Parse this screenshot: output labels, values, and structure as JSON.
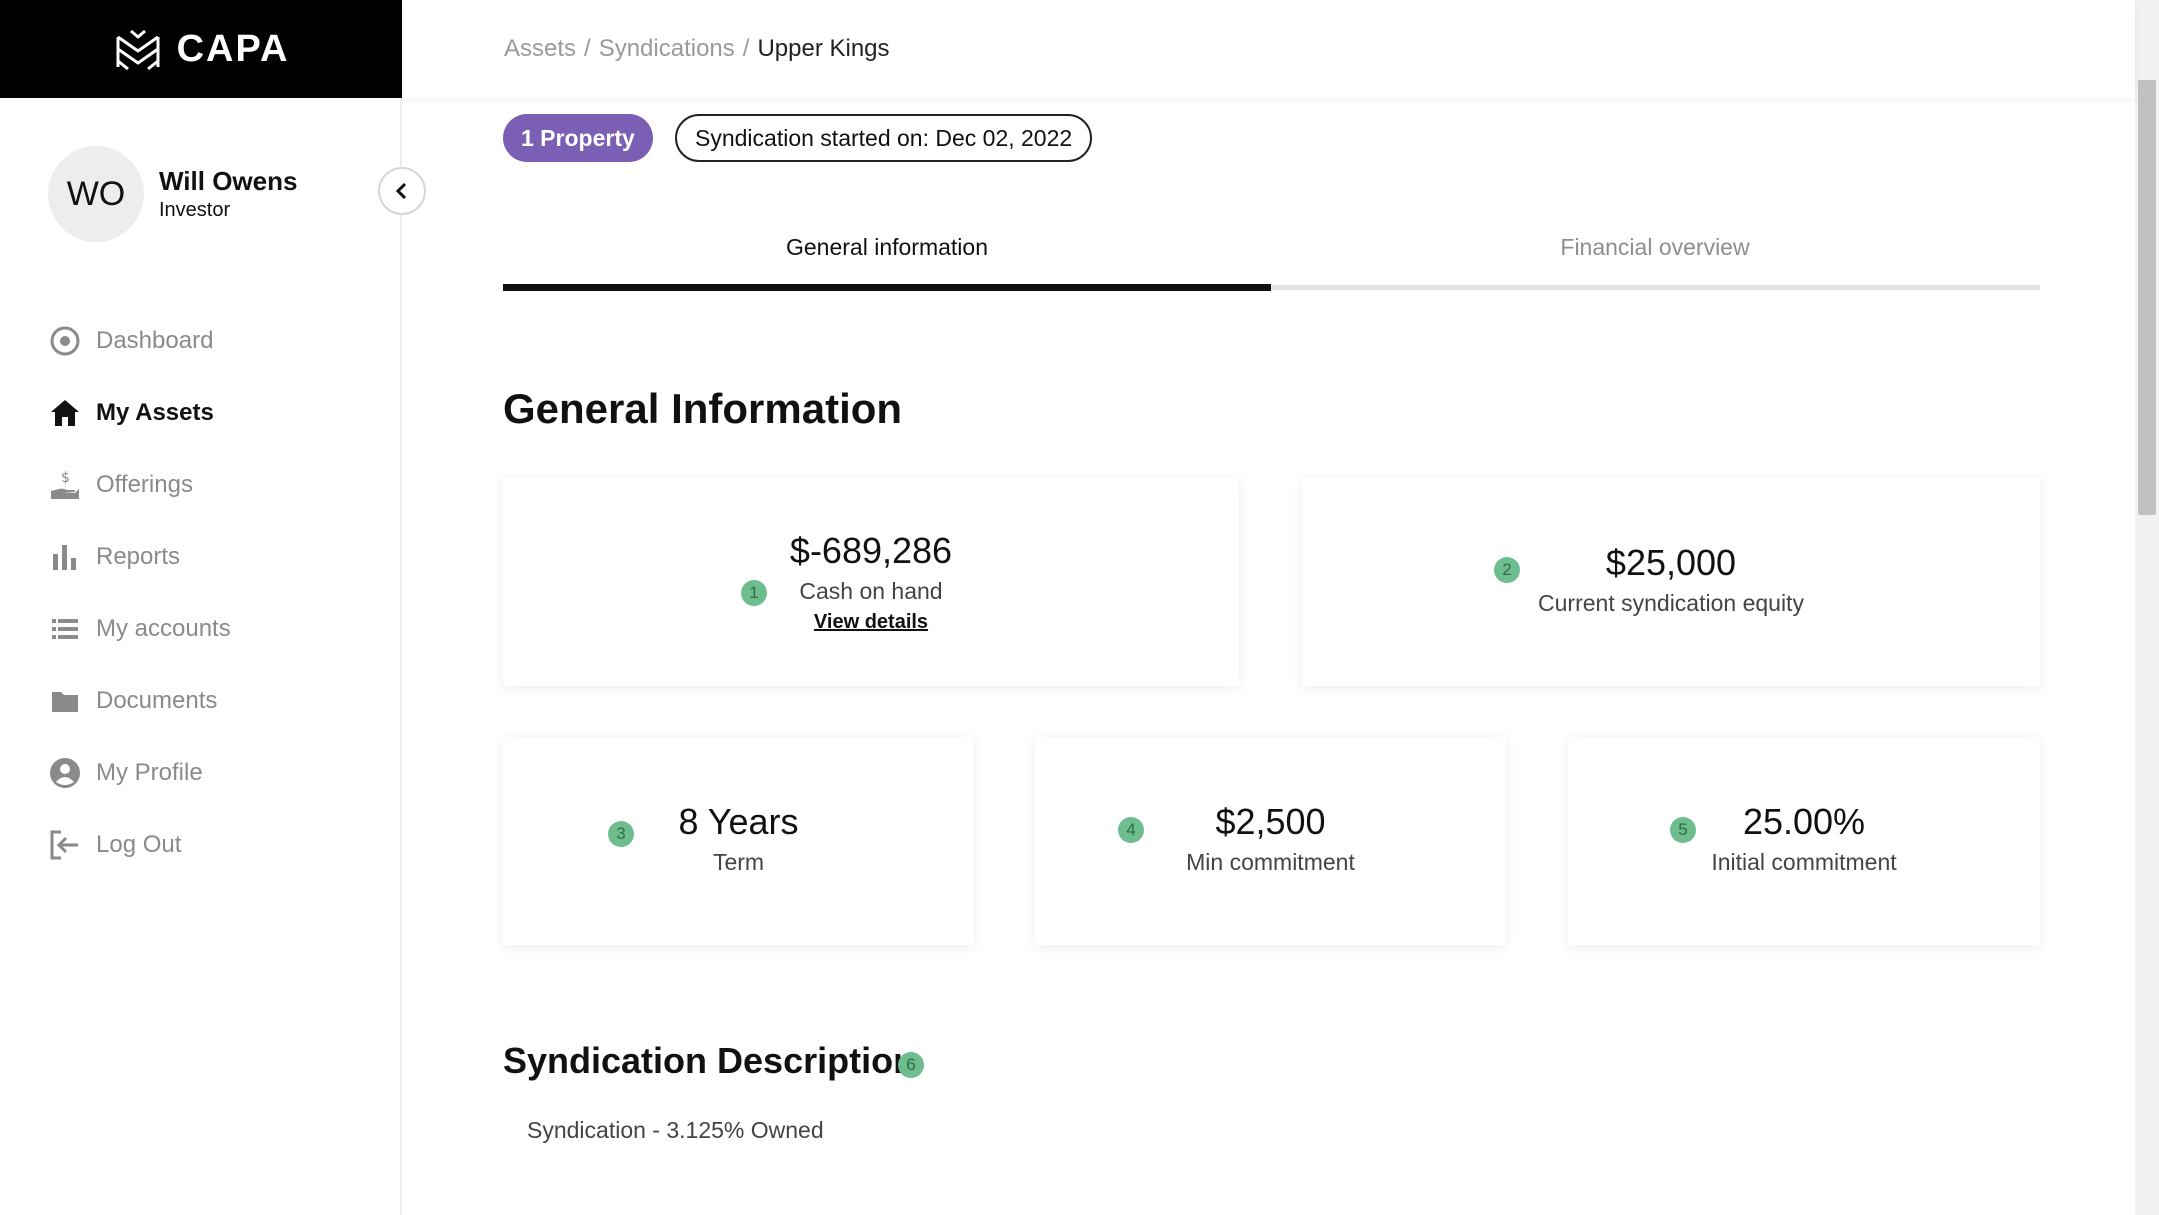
{
  "brand": {
    "name": "CAPA"
  },
  "user": {
    "initials": "WO",
    "name": "Will Owens",
    "role": "Investor"
  },
  "sidebar": {
    "items": [
      {
        "label": "Dashboard",
        "icon": "dashboard-icon"
      },
      {
        "label": "My Assets",
        "icon": "home-icon",
        "active": true
      },
      {
        "label": "Offerings",
        "icon": "offerings-icon"
      },
      {
        "label": "Reports",
        "icon": "bar-chart-icon"
      },
      {
        "label": "My accounts",
        "icon": "list-icon"
      },
      {
        "label": "Documents",
        "icon": "folder-icon"
      },
      {
        "label": "My Profile",
        "icon": "profile-icon"
      },
      {
        "label": "Log Out",
        "icon": "logout-icon"
      }
    ]
  },
  "breadcrumb": {
    "items": [
      "Assets",
      "Syndications",
      "Upper Kings"
    ],
    "separator": "/"
  },
  "badges": {
    "property": "1 Property",
    "started": "Syndication started on: Dec 02, 2022"
  },
  "tabs": [
    {
      "label": "General information",
      "active": true
    },
    {
      "label": "Financial overview",
      "active": false
    }
  ],
  "general": {
    "title": "General Information",
    "cards": [
      {
        "marker": "1",
        "value": "$-689,286",
        "label": "Cash on hand",
        "link": "View details"
      },
      {
        "marker": "2",
        "value": "$25,000",
        "label": "Current syndication equity"
      },
      {
        "marker": "3",
        "value": "8 Years",
        "label": "Term"
      },
      {
        "marker": "4",
        "value": "$2,500",
        "label": "Min commitment"
      },
      {
        "marker": "5",
        "value": "25.00%",
        "label": "Initial commitment"
      }
    ]
  },
  "description": {
    "title": "Syndication Description",
    "marker": "6",
    "text": "Syndication - 3.125% Owned"
  },
  "colors": {
    "accent": "#7b5fb5",
    "marker": "#6dbd8f",
    "logo_bg": "#000000",
    "active_tab": "#111111"
  }
}
